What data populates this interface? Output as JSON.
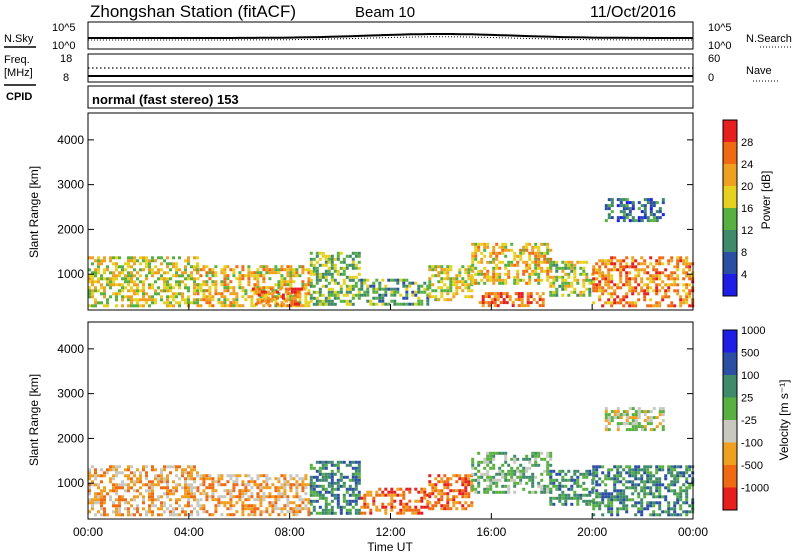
{
  "header": {
    "station": "Zhongshan Station (fitACF)",
    "beam": "Beam 10",
    "date": "11/Oct/2016"
  },
  "top_panels": {
    "nsky_label": "N.Sky",
    "nsearch_label": "N.Search",
    "noise_ticks_left": [
      "10^5",
      "10^0"
    ],
    "noise_ticks_right": [
      "10^5",
      "10^0"
    ],
    "freq_label_1": "Freq.",
    "freq_label_2": "[MHz]",
    "freq_ticks": [
      "18",
      "8"
    ],
    "nave_label": "Nave",
    "nave_ticks": [
      "60",
      "0"
    ],
    "cpid_label": "CPID",
    "cpid_value": "normal (fast stereo) 153"
  },
  "colors": {
    "power_scale": [
      "#1e1ee6",
      "#2c4fa6",
      "#3f8a6a",
      "#58b040",
      "#e6d21e",
      "#f0a020",
      "#f06a14",
      "#e61e1e"
    ],
    "velocity_scale": [
      "#e61e1e",
      "#f06a14",
      "#f0a020",
      "#c8c8c0",
      "#58b040",
      "#3f8a6a",
      "#2c4fa6",
      "#1e1ee6"
    ]
  },
  "chart_data": [
    {
      "type": "heatmap",
      "name": "power",
      "xlabel": "",
      "ylabel": "Slant Range [km]",
      "yticks": [
        "1000",
        "2000",
        "3000",
        "4000"
      ],
      "ylim": [
        200,
        4600
      ],
      "colorbar_label": "Power [dB]",
      "colorbar_ticks": [
        "4",
        "8",
        "12",
        "16",
        "20",
        "24",
        "28"
      ],
      "colorbar_range": [
        0,
        32
      ],
      "blobs": [
        {
          "t0": 0.0,
          "t1": 4.3,
          "r0": 300,
          "r1": 1400,
          "v": 18
        },
        {
          "t0": 4.3,
          "t1": 8.8,
          "r0": 300,
          "r1": 1200,
          "v": 20
        },
        {
          "t0": 6.5,
          "t1": 8.6,
          "r0": 300,
          "r1": 700,
          "v": 26
        },
        {
          "t0": 8.8,
          "t1": 10.8,
          "r0": 300,
          "r1": 1500,
          "v": 14
        },
        {
          "t0": 10.8,
          "t1": 13.5,
          "r0": 300,
          "r1": 900,
          "v": 12
        },
        {
          "t0": 13.5,
          "t1": 15.2,
          "r0": 400,
          "r1": 1200,
          "v": 18
        },
        {
          "t0": 15.2,
          "t1": 18.3,
          "r0": 800,
          "r1": 1700,
          "v": 20
        },
        {
          "t0": 15.5,
          "t1": 18.0,
          "r0": 300,
          "r1": 600,
          "v": 26
        },
        {
          "t0": 18.3,
          "t1": 20.0,
          "r0": 500,
          "r1": 1300,
          "v": 16
        },
        {
          "t0": 20.0,
          "t1": 24.0,
          "r0": 300,
          "r1": 1400,
          "v": 24
        },
        {
          "t0": 20.5,
          "t1": 22.8,
          "r0": 2200,
          "r1": 2700,
          "v": 8
        }
      ]
    },
    {
      "type": "heatmap",
      "name": "velocity",
      "xlabel": "Time UT",
      "ylabel": "Slant Range [km]",
      "xticks": [
        "00:00",
        "04:00",
        "08:00",
        "12:00",
        "16:00",
        "20:00",
        "00:00"
      ],
      "xlim": [
        0,
        24
      ],
      "yticks": [
        "1000",
        "2000",
        "3000",
        "4000"
      ],
      "ylim": [
        200,
        4600
      ],
      "colorbar_label": "Velocity [m s⁻¹]",
      "colorbar_ticks": [
        "-1000",
        "-500",
        "-100",
        "-25",
        "25",
        "100",
        "500",
        "1000"
      ],
      "blobs": [
        {
          "t0": 0.0,
          "t1": 4.3,
          "r0": 300,
          "r1": 1400,
          "v": 2
        },
        {
          "t0": 4.3,
          "t1": 8.8,
          "r0": 300,
          "r1": 1200,
          "v": 2
        },
        {
          "t0": 8.8,
          "t1": 10.8,
          "r0": 300,
          "r1": 1500,
          "v": 5
        },
        {
          "t0": 10.8,
          "t1": 13.5,
          "r0": 300,
          "r1": 900,
          "v": 1
        },
        {
          "t0": 13.5,
          "t1": 15.2,
          "r0": 400,
          "r1": 1200,
          "v": 1
        },
        {
          "t0": 15.2,
          "t1": 18.3,
          "r0": 800,
          "r1": 1700,
          "v": 4
        },
        {
          "t0": 18.3,
          "t1": 20.0,
          "r0": 500,
          "r1": 1300,
          "v": 5
        },
        {
          "t0": 20.0,
          "t1": 24.0,
          "r0": 300,
          "r1": 1400,
          "v": 5
        },
        {
          "t0": 20.5,
          "t1": 22.8,
          "r0": 2200,
          "r1": 2700,
          "v": 3
        }
      ]
    }
  ]
}
